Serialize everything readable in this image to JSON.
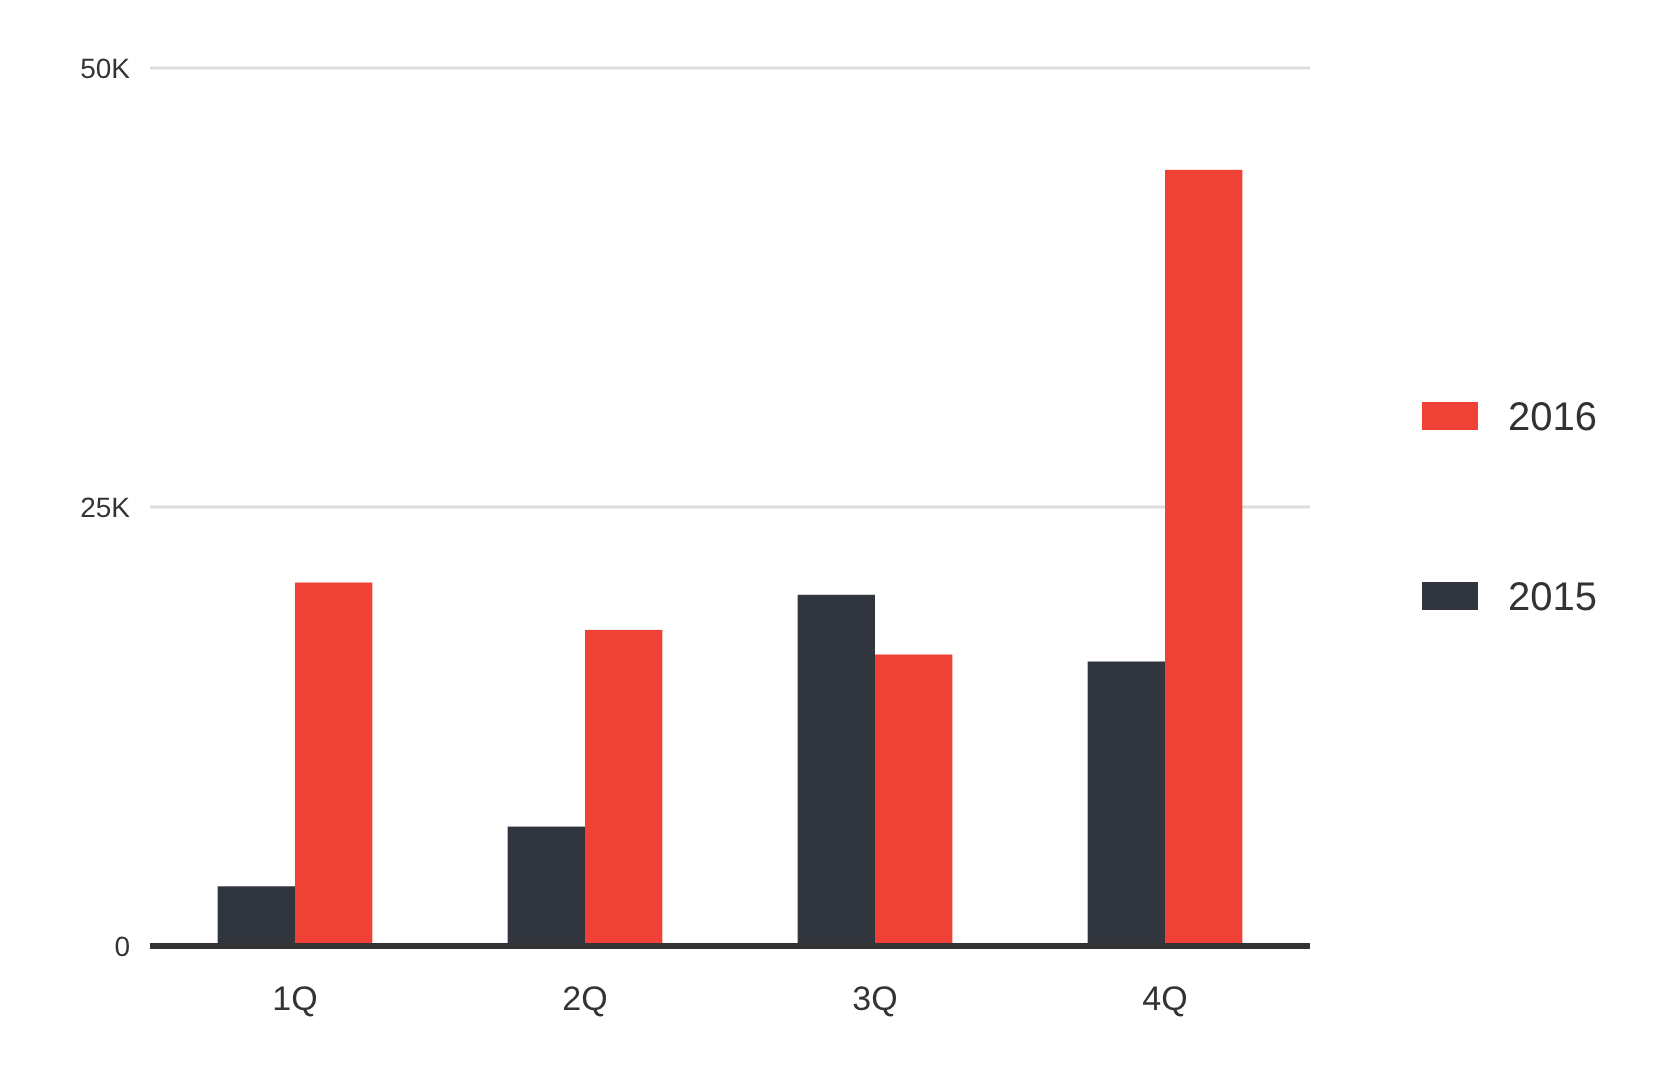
{
  "chart_data": {
    "type": "bar",
    "categories": [
      "1Q",
      "2Q",
      "3Q",
      "4Q"
    ],
    "series": [
      {
        "name": "2015",
        "color": "#31363e",
        "values": [
          3.4,
          6.8,
          20,
          16.2
        ]
      },
      {
        "name": "2016",
        "color": "#ef4135",
        "values": [
          20.7,
          18,
          16.6,
          44.2
        ]
      }
    ],
    "ylim": [
      0,
      50
    ],
    "yticks": [
      {
        "value": 0,
        "label": "0"
      },
      {
        "value": 25,
        "label": "25K"
      },
      {
        "value": 50,
        "label": "50K"
      }
    ],
    "grid": "y",
    "legend": "right"
  }
}
